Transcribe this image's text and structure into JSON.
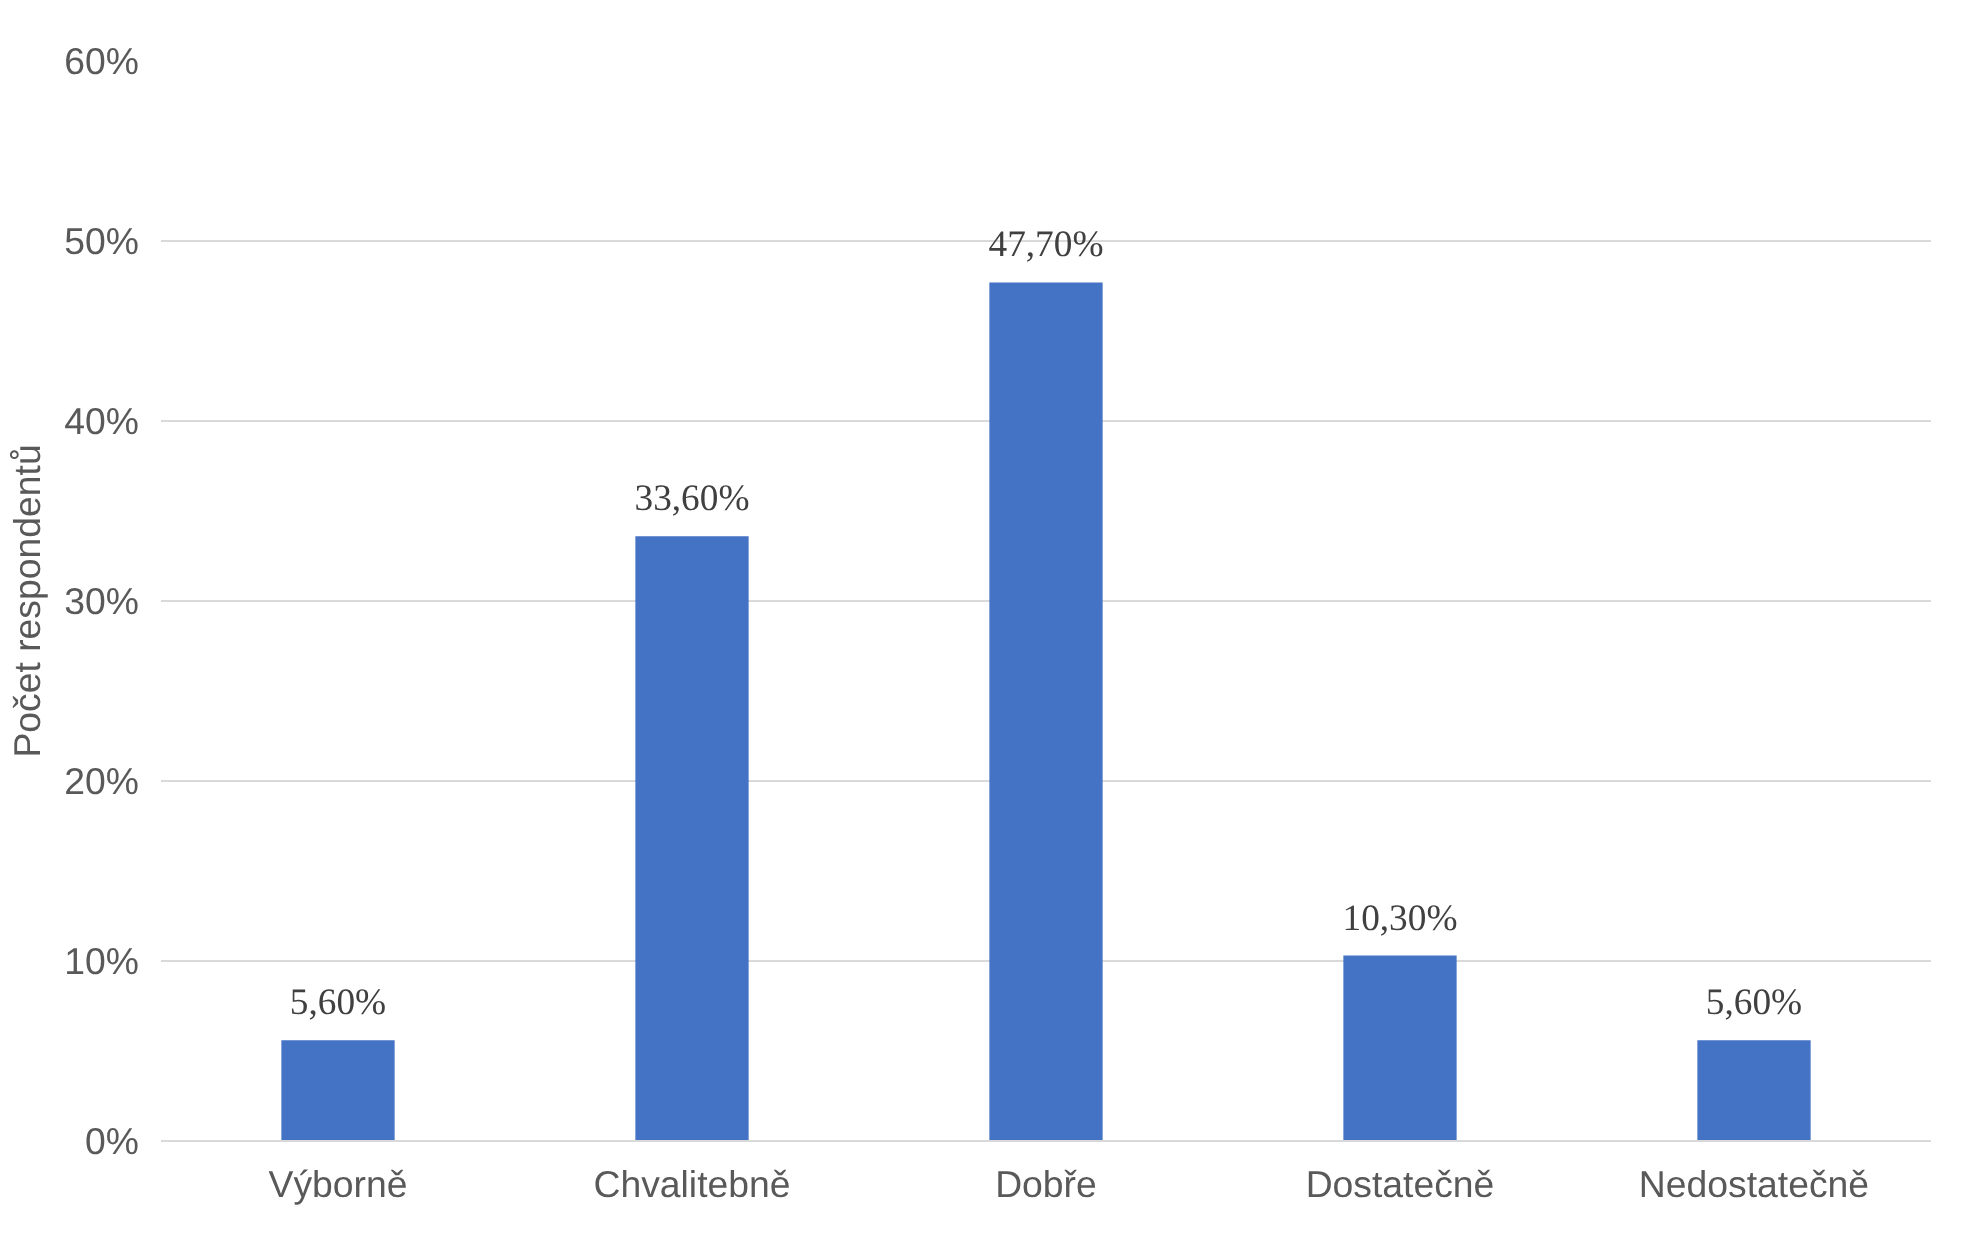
{
  "chart_data": {
    "type": "bar",
    "ylabel": "Počet respondentů",
    "categories": [
      "Výborně",
      "Chvalitebně",
      "Dobře",
      "Dostatečně",
      "Nedostatečně"
    ],
    "values": [
      5.6,
      33.6,
      47.7,
      10.3,
      5.6
    ],
    "value_labels": [
      "5,60%",
      "33,60%",
      "47,70%",
      "10,30%",
      "5,60%"
    ],
    "color": "#4472c4",
    "ylim": [
      0,
      60
    ],
    "yticks": [
      {
        "value": 0,
        "label": "0%"
      },
      {
        "value": 10,
        "label": "10%"
      },
      {
        "value": 20,
        "label": "20%"
      },
      {
        "value": 30,
        "label": "30%"
      },
      {
        "value": 40,
        "label": "40%"
      },
      {
        "value": 50,
        "label": "50%"
      },
      {
        "value": 60,
        "label": "60%"
      }
    ],
    "grid": "y"
  }
}
